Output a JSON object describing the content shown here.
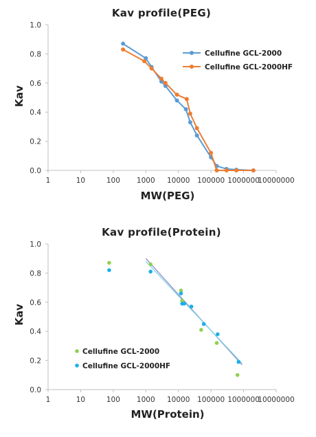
{
  "chart_data": [
    {
      "type": "line",
      "title": "Kav profile(PEG)",
      "xlabel": "MW(PEG)",
      "ylabel": "Kav",
      "x_scale": "log",
      "xlim": [
        1,
        10000000
      ],
      "ylim": [
        0,
        1.0
      ],
      "x_ticks": [
        "1",
        "10",
        "100",
        "1000",
        "10000",
        "100000",
        "1000000",
        "10000000"
      ],
      "y_ticks": [
        "0.0",
        "0.2",
        "0.4",
        "0.6",
        "0.8",
        "1.0"
      ],
      "grid": false,
      "legend_position": "top-right",
      "series": [
        {
          "name": "Cellufine GCL-2000",
          "color": "#5b9bd5",
          "x": [
            200,
            1000,
            1500,
            3000,
            4000,
            9000,
            17000,
            23000,
            37000,
            100000,
            150000,
            300000,
            600000,
            2000000
          ],
          "y": [
            0.87,
            0.77,
            0.71,
            0.61,
            0.58,
            0.48,
            0.42,
            0.33,
            0.24,
            0.09,
            0.03,
            0.01,
            0.005,
            0.0
          ]
        },
        {
          "name": "Cellufine GCL-2000HF",
          "color": "#ed7d31",
          "x": [
            200,
            900,
            1500,
            3000,
            4000,
            9000,
            18000,
            23000,
            37000,
            100000,
            150000,
            300000,
            600000,
            2000000
          ],
          "y": [
            0.83,
            0.75,
            0.7,
            0.63,
            0.6,
            0.52,
            0.49,
            0.39,
            0.29,
            0.12,
            0.0,
            0.0,
            0.0,
            0.0
          ]
        }
      ]
    },
    {
      "type": "scatter",
      "title": "Kav profile(Protein)",
      "xlabel": "MW(Protein)",
      "ylabel": "Kav",
      "x_scale": "log",
      "xlim": [
        1,
        10000000
      ],
      "ylim": [
        0,
        1.0
      ],
      "x_ticks": [
        "1",
        "10",
        "100",
        "1000",
        "10000",
        "100000",
        "1000000",
        "10000000"
      ],
      "y_ticks": [
        "0.0",
        "0.2",
        "0.4",
        "0.6",
        "0.8",
        "1.0"
      ],
      "grid": false,
      "legend_position": "bottom-left",
      "series": [
        {
          "name": "Cellufine GCL-2000",
          "color": "#92d050",
          "trend_color": "#8e8cc8",
          "x": [
            75,
            1400,
            12000,
            13000,
            25000,
            50000,
            150000,
            650000
          ],
          "y": [
            0.87,
            0.86,
            0.68,
            0.61,
            0.57,
            0.41,
            0.32,
            0.1
          ],
          "trend_x": [
            1000,
            900000
          ],
          "trend_y": [
            0.9,
            0.17
          ]
        },
        {
          "name": "Cellufine GCL-2000HF",
          "color": "#1ab0e8",
          "trend_color": "#7fd4e8",
          "x": [
            75,
            1400,
            12000,
            13000,
            15000,
            25000,
            60000,
            160000,
            700000
          ],
          "y": [
            0.82,
            0.81,
            0.66,
            0.59,
            0.59,
            0.57,
            0.45,
            0.38,
            0.19
          ],
          "trend_x": [
            1000,
            900000
          ],
          "trend_y": [
            0.88,
            0.18
          ]
        }
      ]
    }
  ]
}
